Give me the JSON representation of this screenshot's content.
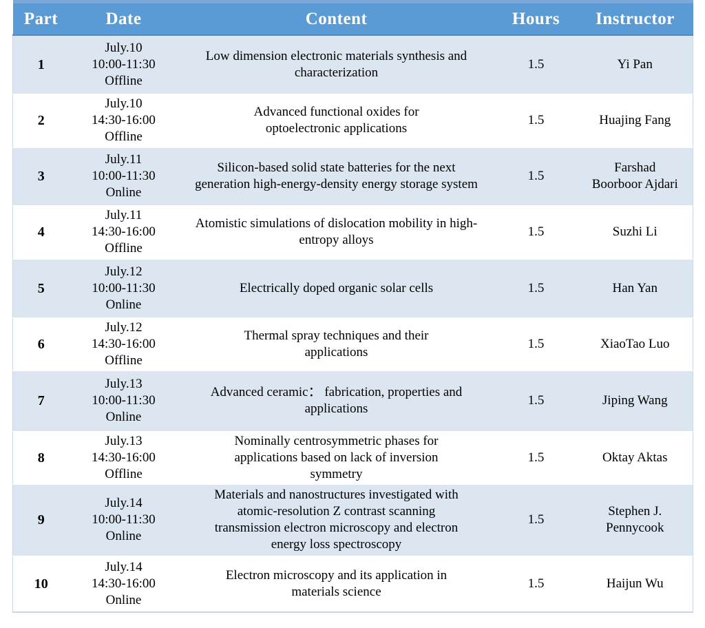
{
  "colors": {
    "header_bg": "#5B9BD5",
    "header_top_edge": "#7BA7D9",
    "header_bottom_edge": "#4E8CC8",
    "band_row_bg": "#DCE6F1",
    "white_row_bg": "#FFFFFF",
    "header_text": "#FFFFFF",
    "body_text": "#000000",
    "outer_border": "#C9D6E4"
  },
  "table": {
    "headers": [
      "Part",
      "Date",
      "Content",
      "Hours",
      "Instructor"
    ],
    "rows": [
      {
        "part": "1",
        "date_day": "July.10",
        "date_time": "10:00-11:30",
        "mode": "Offline",
        "content": "Low dimension electronic materials synthesis and characterization",
        "hours": "1.5",
        "instructor": "Yi Pan"
      },
      {
        "part": "2",
        "date_day": "July.10",
        "date_time": "14:30-16:00",
        "mode": "Offline",
        "content": "Advanced functional oxides for optoelectronic applications",
        "hours": "1.5",
        "instructor": "Huajing Fang"
      },
      {
        "part": "3",
        "date_day": "July.11",
        "date_time": "10:00-11:30",
        "mode": "Online",
        "content": "Silicon-based solid state batteries for the next generation high-energy-density energy storage system",
        "hours": "1.5",
        "instructor": "Farshad Boorboor Ajdari"
      },
      {
        "part": "4",
        "date_day": "July.11",
        "date_time": "14:30-16:00",
        "mode": "Offline",
        "content": "Atomistic simulations of dislocation mobility in high-entropy alloys",
        "hours": "1.5",
        "instructor": "Suzhi Li"
      },
      {
        "part": "5",
        "date_day": "July.12",
        "date_time": "10:00-11:30",
        "mode": "Online",
        "content": "Electrically doped organic solar cells",
        "hours": "1.5",
        "instructor": "Han Yan"
      },
      {
        "part": "6",
        "date_day": "July.12",
        "date_time": "14:30-16:00",
        "mode": "Offline",
        "content": "Thermal spray techniques and their applications",
        "hours": "1.5",
        "instructor": "XiaoTao Luo"
      },
      {
        "part": "7",
        "date_day": "July.13",
        "date_time": "10:00-11:30",
        "mode": "Online",
        "content": "Advanced ceramic： fabrication, properties and applications",
        "hours": "1.5",
        "instructor": "Jiping Wang"
      },
      {
        "part": "8",
        "date_day": "July.13",
        "date_time": "14:30-16:00",
        "mode": "Offline",
        "content": "Nominally centrosymmetric phases for applications based on lack of inversion symmetry",
        "hours": "1.5",
        "instructor": "Oktay Aktas"
      },
      {
        "part": "9",
        "date_day": "July.14",
        "date_time": "10:00-11:30",
        "mode": "Online",
        "content": "Materials and nanostructures investigated with atomic-resolution Z contrast scanning transmission electron microscopy and electron energy loss spectroscopy",
        "hours": "1.5",
        "instructor": "Stephen J. Pennycook"
      },
      {
        "part": "10",
        "date_day": "July.14",
        "date_time": "14:30-16:00",
        "mode": "Online",
        "content": "Electron microscopy and its application in materials science",
        "hours": "1.5",
        "instructor": "Haijun Wu"
      }
    ]
  }
}
